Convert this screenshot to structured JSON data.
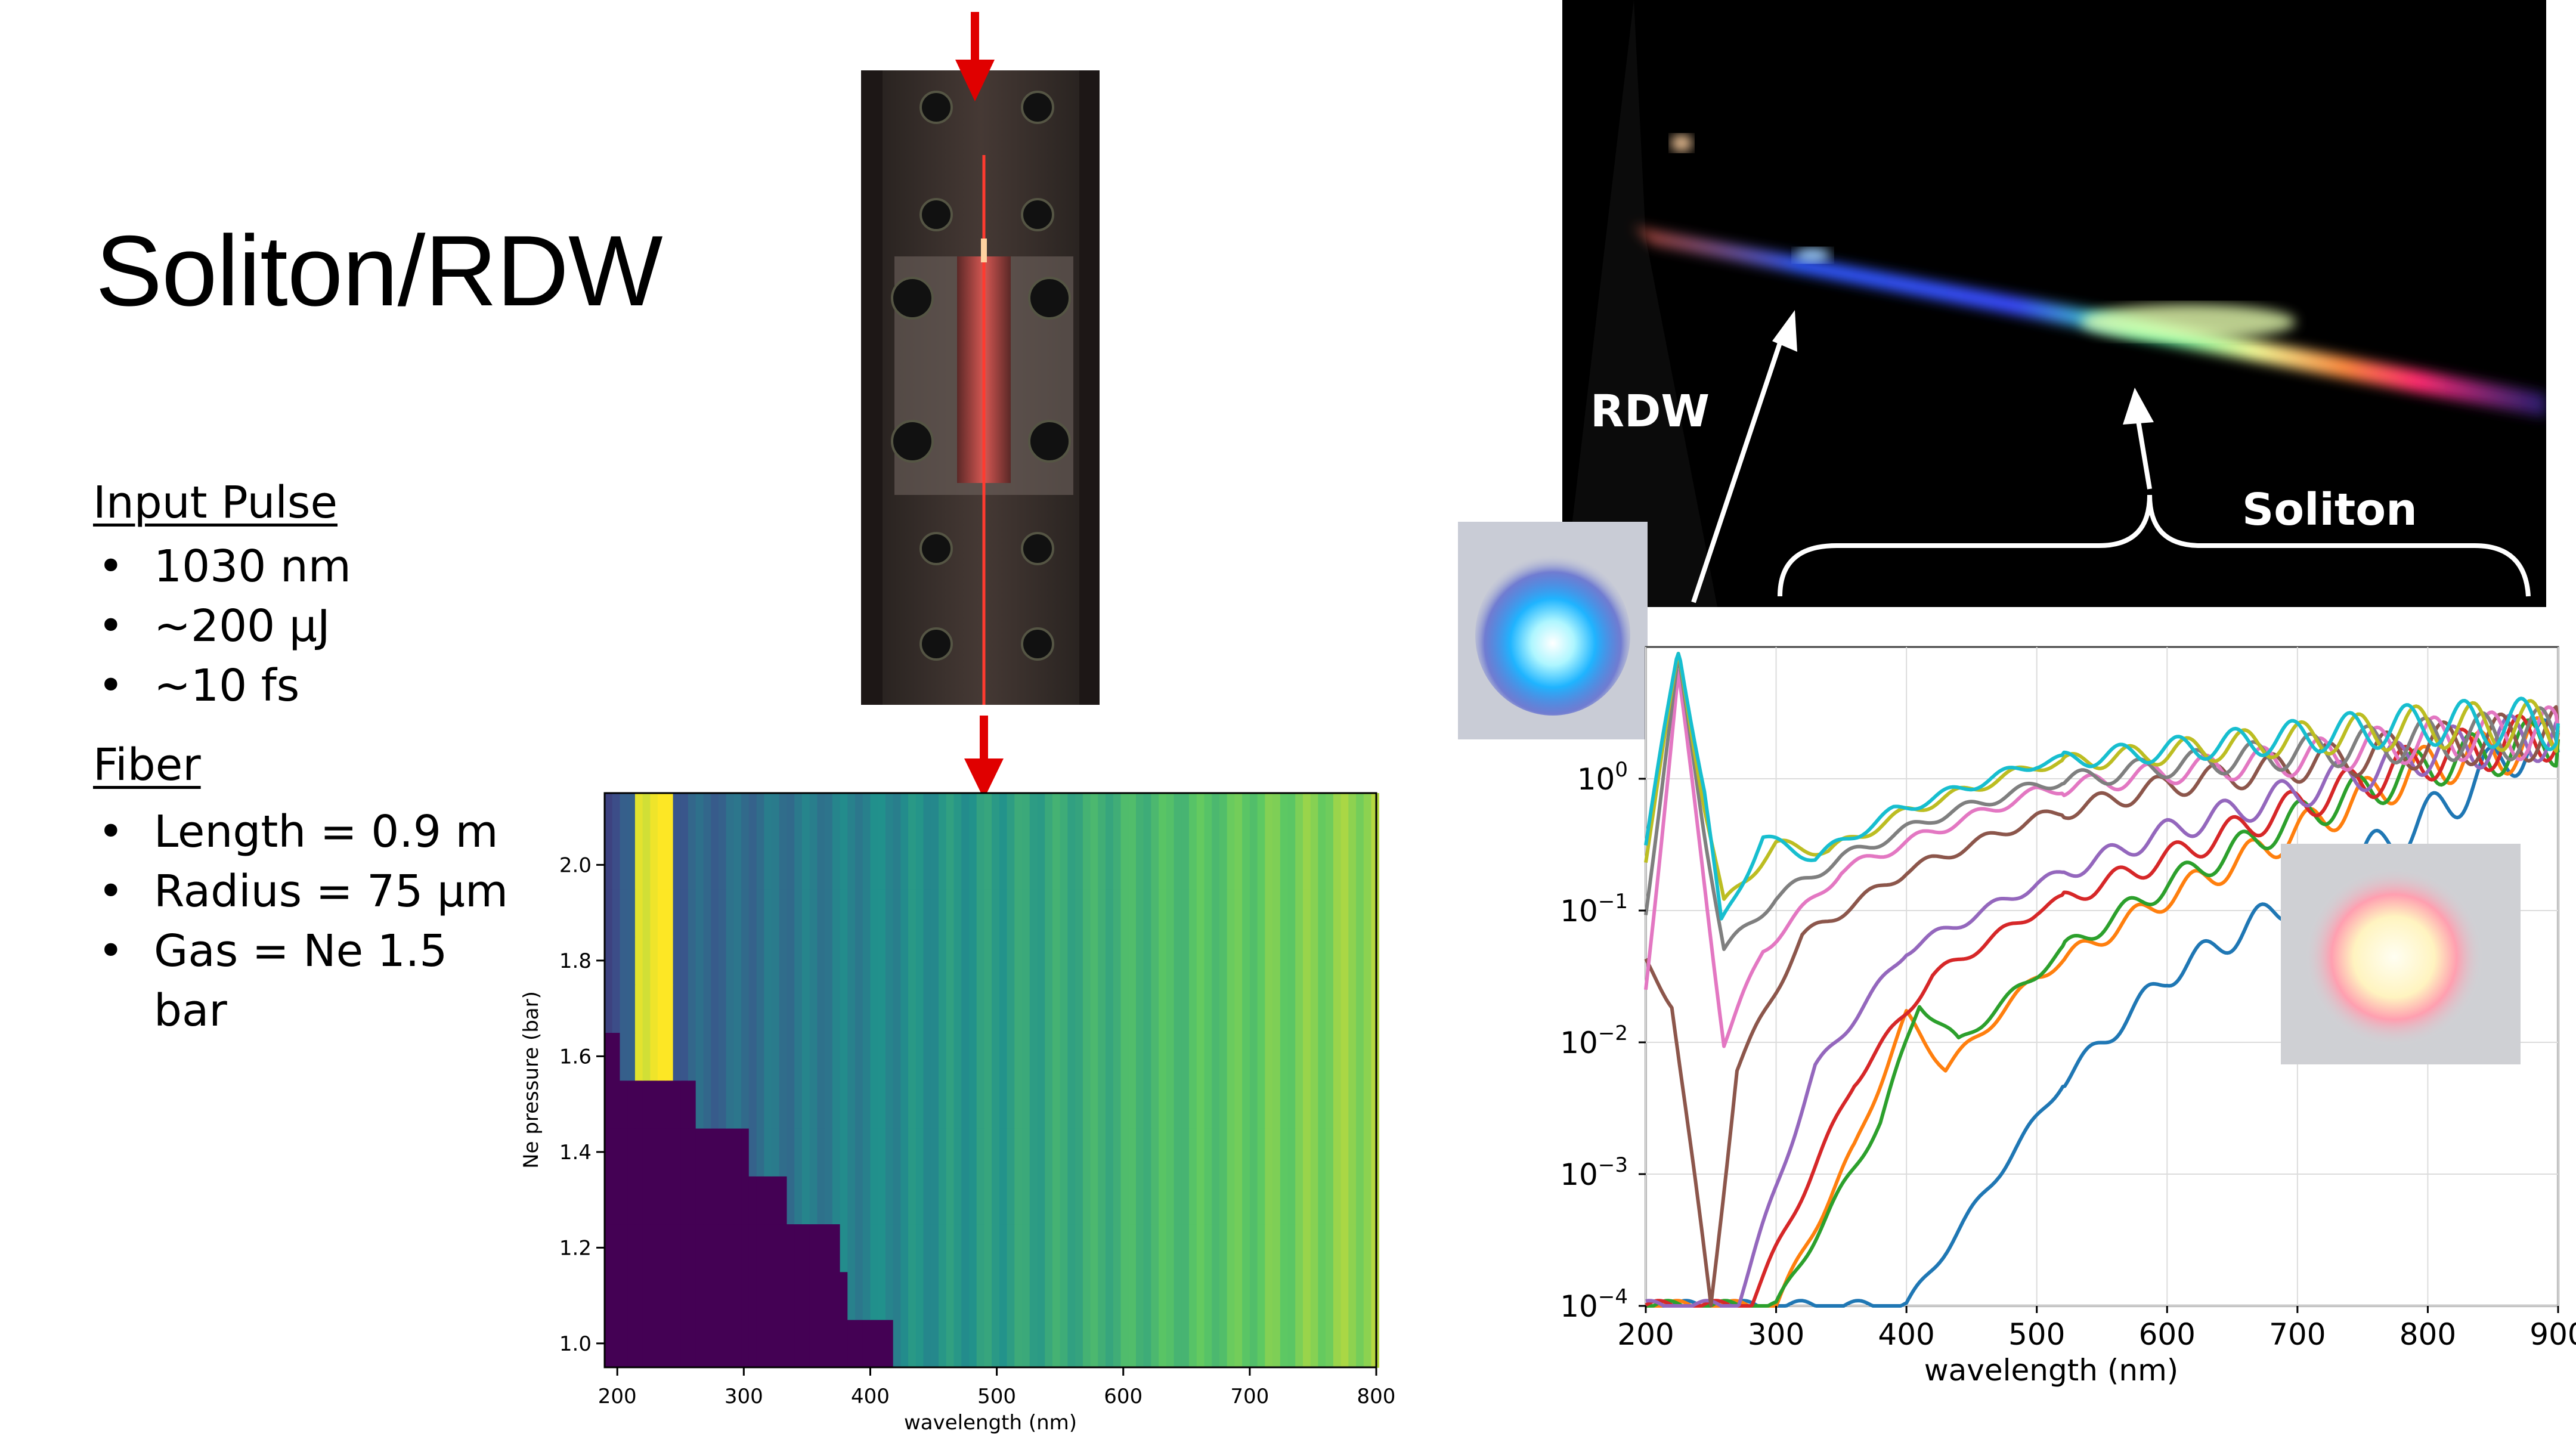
{
  "slide": {
    "title": "Soliton/RDW",
    "input_pulse": {
      "heading": "Input Pulse",
      "items": [
        "1030 nm",
        "~200 µJ",
        "~10 fs"
      ]
    },
    "fiber": {
      "heading": "Fiber",
      "items": [
        "Length = 0.9 m",
        "Radius = 75 µm",
        "Gas = Ne 1.5 bar"
      ]
    }
  },
  "photo": {
    "rdw_label": "RDW",
    "soliton_label": "Soliton"
  },
  "colors": {
    "arrow_red": "#e00000",
    "viridis_dark": "#440154",
    "viridis_yellow": "#fde725"
  },
  "chart_data": [
    {
      "type": "heatmap",
      "xlabel": "wavelength (nm)",
      "ylabel": "Ne pressure (bar)",
      "xlim": [
        190,
        800
      ],
      "ylim": [
        0.95,
        2.15
      ],
      "x_ticks": [
        "200",
        "300",
        "400",
        "500",
        "600",
        "700",
        "800"
      ],
      "y_ticks": [
        "1.0",
        "1.2",
        "1.4",
        "1.6",
        "1.8",
        "2.0"
      ],
      "colormap": "viridis",
      "rows": [
        {
          "pressure": 1.0,
          "edge_nm": 415
        },
        {
          "pressure": 1.1,
          "edge_nm": 380
        },
        {
          "pressure": 1.2,
          "edge_nm": 375
        },
        {
          "pressure": 1.3,
          "edge_nm": 330
        },
        {
          "pressure": 1.4,
          "edge_nm": 300
        },
        {
          "pressure": 1.5,
          "edge_nm": 260
        },
        {
          "pressure": 1.6,
          "edge_nm": 200
        },
        {
          "pressure": 1.7,
          "edge_nm": 190
        },
        {
          "pressure": 1.8,
          "edge_nm": 190
        },
        {
          "pressure": 1.9,
          "edge_nm": 190
        },
        {
          "pressure": 2.0,
          "edge_nm": 190
        },
        {
          "pressure": 2.1,
          "edge_nm": 190
        }
      ]
    },
    {
      "type": "line",
      "xlabel": "wavelength (nm)",
      "ylabel": "",
      "xlim": [
        200,
        900
      ],
      "ylim": [
        0.0001,
        10
      ],
      "y_scale": "log",
      "x_ticks": [
        "200",
        "300",
        "400",
        "500",
        "600",
        "700",
        "800",
        "900"
      ],
      "y_ticks": [
        "10^0",
        "10^-1",
        "10^-2",
        "10^-3",
        "10^-4"
      ],
      "series": [
        {
          "color": "#1f77b4",
          "points": [
            [
              200,
              -4
            ],
            [
              400,
              -4
            ],
            [
              470,
              -3
            ],
            [
              520,
              -2.3
            ],
            [
              600,
              -1.5
            ],
            [
              700,
              -0.9
            ],
            [
              800,
              -0.3
            ],
            [
              880,
              0.3
            ],
            [
              900,
              0.2
            ]
          ]
        },
        {
          "color": "#ff7f0e",
          "points": [
            [
              200,
              -4
            ],
            [
              300,
              -4
            ],
            [
              360,
              -2.8
            ],
            [
              400,
              -1.8
            ],
            [
              430,
              -2.2
            ],
            [
              500,
              -1.5
            ],
            [
              600,
              -0.9
            ],
            [
              700,
              -0.4
            ],
            [
              800,
              0.1
            ],
            [
              900,
              0.3
            ]
          ]
        },
        {
          "color": "#2ca02c",
          "points": [
            [
              200,
              -4
            ],
            [
              300,
              -4
            ],
            [
              380,
              -2.6
            ],
            [
              410,
              -1.7
            ],
            [
              440,
              -2.0
            ],
            [
              520,
              -1.3
            ],
            [
              600,
              -0.8
            ],
            [
              700,
              -0.3
            ],
            [
              800,
              0.1
            ],
            [
              900,
              0.3
            ]
          ]
        },
        {
          "color": "#d62728",
          "points": [
            [
              200,
              -4
            ],
            [
              280,
              -4
            ],
            [
              360,
              -2.3
            ],
            [
              420,
              -1.5
            ],
            [
              500,
              -1.0
            ],
            [
              600,
              -0.6
            ],
            [
              700,
              -0.2
            ],
            [
              800,
              0.15
            ],
            [
              900,
              0.35
            ]
          ]
        },
        {
          "color": "#9467bd",
          "points": [
            [
              200,
              -4
            ],
            [
              270,
              -4
            ],
            [
              330,
              -2.2
            ],
            [
              400,
              -1.3
            ],
            [
              500,
              -0.8
            ],
            [
              600,
              -0.4
            ],
            [
              700,
              -0.1
            ],
            [
              800,
              0.2
            ],
            [
              900,
              0.35
            ]
          ]
        },
        {
          "color": "#8c564b",
          "points": [
            [
              200,
              -1.4
            ],
            [
              220,
              -1.7
            ],
            [
              250,
              -4
            ],
            [
              270,
              -2.2
            ],
            [
              320,
              -1.2
            ],
            [
              400,
              -0.7
            ],
            [
              500,
              -0.3
            ],
            [
              600,
              -0.05
            ],
            [
              700,
              0.1
            ],
            [
              800,
              0.25
            ],
            [
              900,
              0.35
            ]
          ]
        },
        {
          "color": "#e377c2",
          "points": [
            [
              200,
              -1.6
            ],
            [
              225,
              0.8
            ],
            [
              240,
              -0.4
            ],
            [
              260,
              -2.0
            ],
            [
              290,
              -1.3
            ],
            [
              350,
              -0.7
            ],
            [
              420,
              -0.4
            ],
            [
              500,
              -0.1
            ],
            [
              600,
              0.05
            ],
            [
              700,
              0.15
            ],
            [
              800,
              0.3
            ],
            [
              900,
              0.35
            ]
          ]
        },
        {
          "color": "#7f7f7f",
          "points": [
            [
              200,
              -1.0
            ],
            [
              225,
              0.9
            ],
            [
              245,
              -0.4
            ],
            [
              260,
              -1.3
            ],
            [
              300,
              -0.9
            ],
            [
              350,
              -0.6
            ],
            [
              420,
              -0.3
            ],
            [
              500,
              -0.05
            ],
            [
              600,
              0.1
            ],
            [
              700,
              0.2
            ],
            [
              800,
              0.3
            ],
            [
              900,
              0.35
            ]
          ]
        },
        {
          "color": "#bcbd22",
          "points": [
            [
              200,
              -0.6
            ],
            [
              225,
              0.95
            ],
            [
              245,
              -0.2
            ],
            [
              260,
              -0.95
            ],
            [
              300,
              -0.5
            ],
            [
              340,
              -0.55
            ],
            [
              400,
              -0.25
            ],
            [
              500,
              0.1
            ],
            [
              600,
              0.2
            ],
            [
              700,
              0.3
            ],
            [
              800,
              0.4
            ],
            [
              900,
              0.4
            ]
          ]
        },
        {
          "color": "#17becf",
          "points": [
            [
              200,
              -0.5
            ],
            [
              225,
              1.0
            ],
            [
              245,
              -0.1
            ],
            [
              258,
              -1.1
            ],
            [
              290,
              -0.45
            ],
            [
              330,
              -0.6
            ],
            [
              390,
              -0.25
            ],
            [
              500,
              0.12
            ],
            [
              600,
              0.22
            ],
            [
              700,
              0.32
            ],
            [
              800,
              0.42
            ],
            [
              900,
              0.42
            ]
          ]
        }
      ]
    }
  ]
}
